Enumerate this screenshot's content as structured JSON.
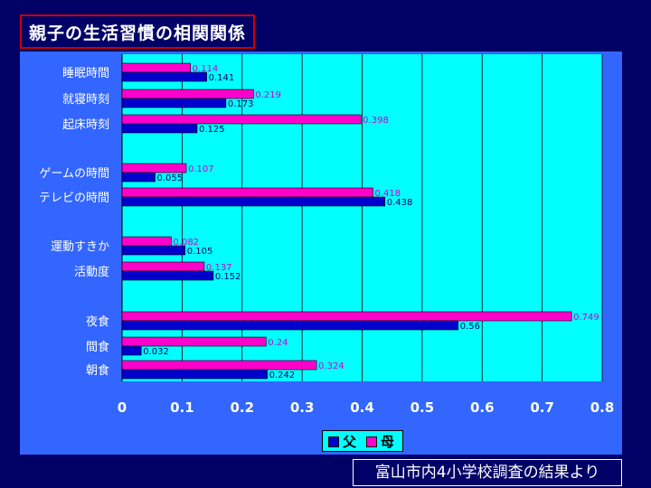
{
  "title": "親子の生活習慣の相関関係",
  "source_note": "富山市内4小学校調査の結果より",
  "colors": {
    "background": "#000066",
    "panel": "#3366ff",
    "plot_area": "#00ffff",
    "father": "#0000cc",
    "mother": "#ff00cc",
    "title_border": "#cc0000"
  },
  "chart_data": {
    "type": "bar",
    "orientation": "horizontal",
    "categories": [
      "睡眠時間",
      "就寝時刻",
      "起床時刻",
      "ゲームの時間",
      "テレビの時間",
      "運動すきか",
      "活動度",
      "夜食",
      "間食",
      "朝食"
    ],
    "series": [
      {
        "name": "父",
        "color": "#0000cc",
        "values": [
          0.141,
          0.173,
          0.125,
          0.055,
          0.438,
          0.105,
          0.152,
          0.56,
          0.032,
          0.242
        ]
      },
      {
        "name": "母",
        "color": "#ff00cc",
        "values": [
          0.114,
          0.219,
          0.398,
          0.107,
          0.418,
          0.082,
          0.137,
          0.749,
          0.24,
          0.324
        ]
      }
    ],
    "data_labels": {
      "父": [
        "0.141",
        "0.173",
        "0.125",
        "0.055",
        "0.438",
        "0.105",
        "0.152",
        "0.56",
        "0.032",
        "0.242"
      ],
      "母": [
        "0.114",
        "0.219",
        "0.398",
        "0.107",
        "0.418",
        "0.082",
        "0.137",
        "0.749",
        "0.24",
        "0.324"
      ]
    },
    "xlim": [
      0,
      0.8
    ],
    "x_ticks": [
      "0",
      "0.1",
      "0.2",
      "0.3",
      "0.4",
      "0.5",
      "0.6",
      "0.7",
      "0.8"
    ],
    "grid": true,
    "legend": "bottom"
  }
}
